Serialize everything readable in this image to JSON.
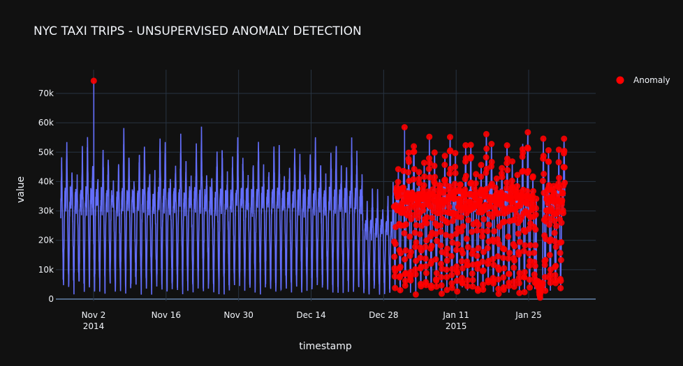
{
  "chart_data": {
    "type": "line",
    "title": "NYC TAXI TRIPS - UNSUPERVISED ANOMALY DETECTION",
    "xlabel": "timestamp",
    "ylabel": "value",
    "x_range": [
      "2014-10-27",
      "2015-02-14"
    ],
    "ylim": [
      -2500,
      79000
    ],
    "grid": true,
    "legend_position": "top-right",
    "legend": [
      {
        "name": "Anomaly",
        "color": "#ff0000"
      }
    ],
    "x_ticks": [
      {
        "date": "2014-11-02",
        "label": "Nov 2",
        "sublabel": "2014"
      },
      {
        "date": "2014-11-16",
        "label": "Nov 16"
      },
      {
        "date": "2014-11-30",
        "label": "Nov 30"
      },
      {
        "date": "2014-12-14",
        "label": "Dec 14"
      },
      {
        "date": "2014-12-28",
        "label": "Dec 28"
      },
      {
        "date": "2015-01-11",
        "label": "Jan 11",
        "sublabel": "2015"
      },
      {
        "date": "2015-01-25",
        "label": "Jan 25"
      }
    ],
    "y_ticks": [
      {
        "value": 0,
        "label": "0"
      },
      {
        "value": 10000,
        "label": "10k"
      },
      {
        "value": 20000,
        "label": "20k"
      },
      {
        "value": 30000,
        "label": "30k"
      },
      {
        "value": 40000,
        "label": "40k"
      },
      {
        "value": 50000,
        "label": "50k"
      },
      {
        "value": 60000,
        "label": "60k"
      },
      {
        "value": 70000,
        "label": "70k"
      }
    ],
    "series": [
      {
        "line_color": "#636efa",
        "start": "2014-10-26T16:00",
        "end": "2015-01-31T23:30",
        "interval_minutes": 30,
        "daily_pattern": "trough about 4k near 5am, peaks 40k-55k in the evening",
        "notable_points": [
          {
            "x": "2014-11-02T01:00",
            "y": 74300,
            "anomaly": true
          },
          {
            "x": "2015-01-01T01:00",
            "y": 58500,
            "anomaly": true
          },
          {
            "x": "2015-01-27T05:00",
            "y": 500,
            "anomaly": true
          }
        ],
        "anomaly_range": [
          "2014-12-30",
          "2015-01-31"
        ]
      }
    ],
    "anomaly_color": "#ff0000"
  }
}
